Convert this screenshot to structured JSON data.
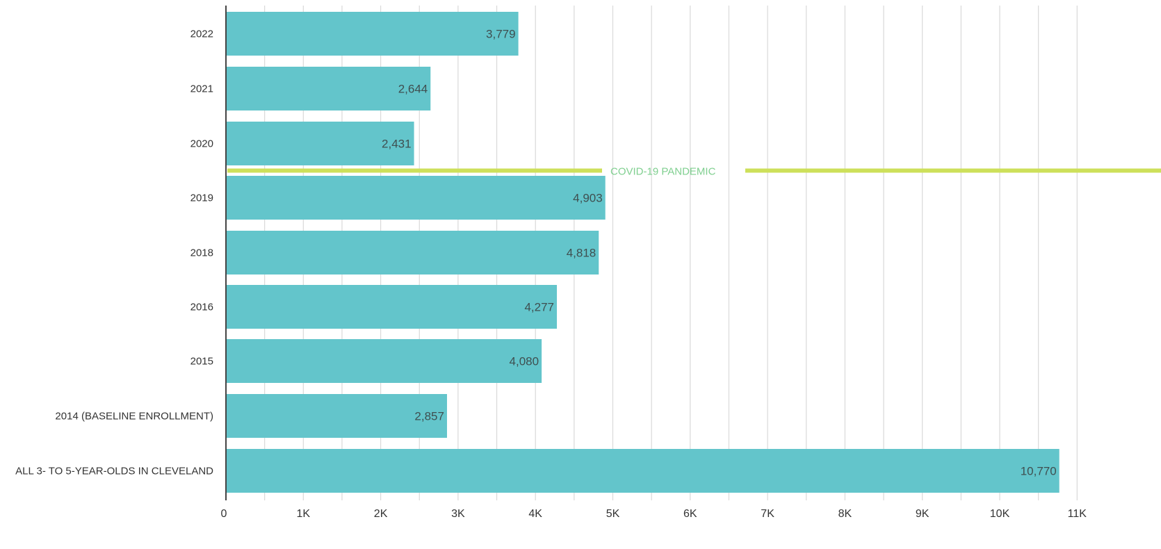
{
  "chart_data": {
    "type": "bar",
    "orientation": "horizontal",
    "categories": [
      "2022",
      "2021",
      "2020",
      "2019",
      "2018",
      "2016",
      "2015",
      "2014 (BASELINE ENROLLMENT)",
      "ALL 3- TO 5-YEAR-OLDS IN CLEVELAND"
    ],
    "values": [
      3779,
      2644,
      2431,
      4903,
      4818,
      4277,
      4080,
      2857,
      10770
    ],
    "value_labels": [
      "3,779",
      "2,644",
      "2,431",
      "4,903",
      "4,818",
      "4,277",
      "4,080",
      "2,857",
      "10,770"
    ],
    "xlim": [
      0,
      11000
    ],
    "x_ticks": [
      0,
      1000,
      2000,
      3000,
      4000,
      5000,
      6000,
      7000,
      8000,
      9000,
      10000,
      11000
    ],
    "x_tick_labels": [
      "0",
      "1K",
      "2K",
      "3K",
      "4K",
      "5K",
      "6K",
      "7K",
      "8K",
      "9K",
      "10K",
      "11K"
    ],
    "grid": true,
    "title": "",
    "xlabel": "",
    "ylabel": "",
    "annotation": {
      "text": "COVID-19 PANDEMIC",
      "between_categories": [
        "2020",
        "2019"
      ]
    },
    "colors": {
      "bar": "#63c5cb",
      "annotation_line": "#cde05a",
      "annotation_text": "#7fcf8f",
      "grid": "#d9d9d9",
      "axis": "#444444"
    }
  }
}
